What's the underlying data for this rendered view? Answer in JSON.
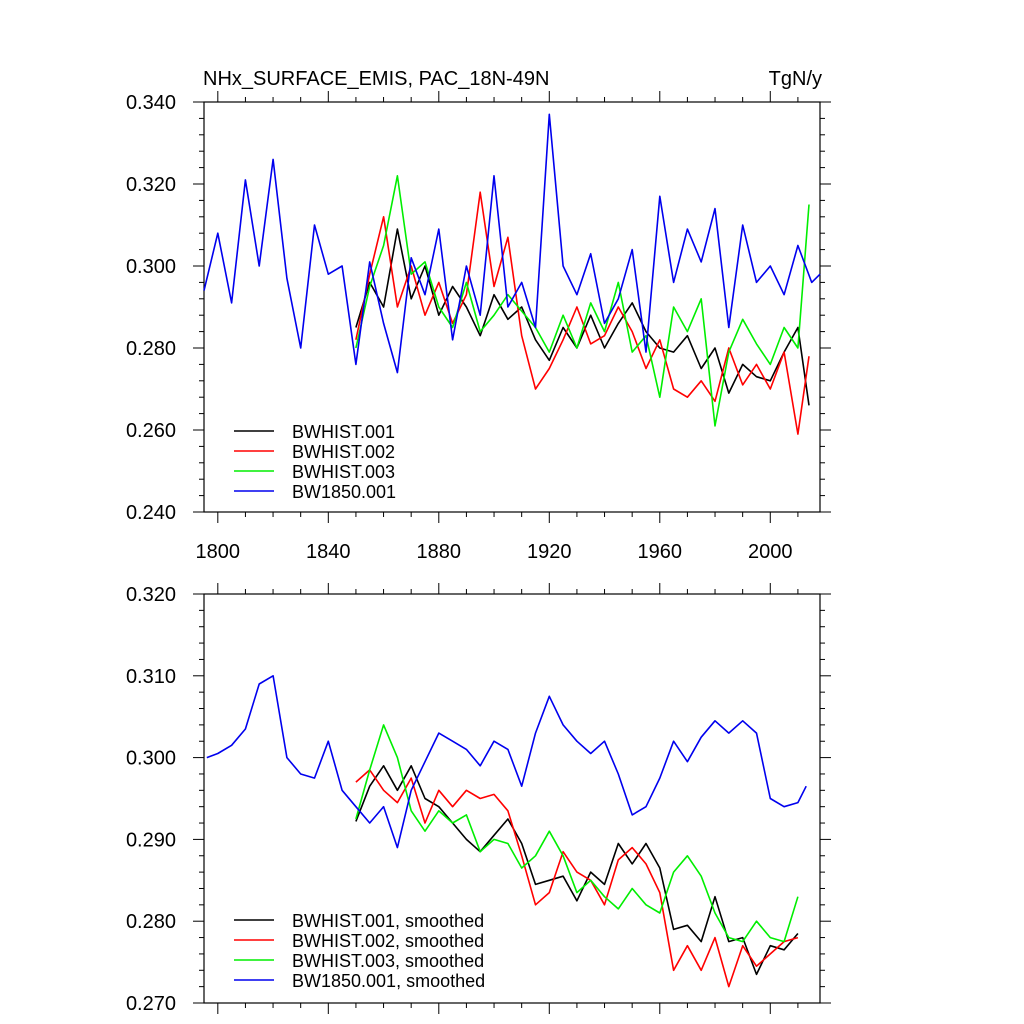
{
  "header": {
    "title": "NHx_SURFACE_EMIS, PAC_18N-49N",
    "units": "TgN/y"
  },
  "colors": {
    "s1": "#000000",
    "s2": "#ff0000",
    "s3": "#00ee00",
    "s4": "#0000ee"
  },
  "chart_data": [
    {
      "type": "line",
      "title": "NHx_SURFACE_EMIS, PAC_18N-49N",
      "units": "TgN/y",
      "xlim": [
        1795,
        2018
      ],
      "ylim": [
        0.24,
        0.34
      ],
      "xticks": [
        1800,
        1840,
        1880,
        1920,
        1960,
        2000
      ],
      "xtick_labels": [
        "1800",
        "1840",
        "1880",
        "1920",
        "1960",
        "2000"
      ],
      "yticks": [
        0.24,
        0.26,
        0.28,
        0.3,
        0.32,
        0.34
      ],
      "ytick_labels": [
        "0.240",
        "0.260",
        "0.280",
        "0.300",
        "0.320",
        "0.340"
      ],
      "legend": [
        "BWHIST.001",
        "BWHIST.002",
        "BWHIST.003",
        "BW1850.001"
      ],
      "legend_position": "bottom-left",
      "series": [
        {
          "name": "BWHIST.001",
          "color": "#000000",
          "x": [
            1850,
            1855,
            1860,
            1865,
            1870,
            1875,
            1880,
            1885,
            1890,
            1895,
            1900,
            1905,
            1910,
            1915,
            1920,
            1925,
            1930,
            1935,
            1940,
            1945,
            1950,
            1955,
            1960,
            1965,
            1970,
            1975,
            1980,
            1985,
            1990,
            1995,
            2000,
            2005,
            2010,
            2014
          ],
          "y": [
            0.285,
            0.296,
            0.29,
            0.309,
            0.292,
            0.3,
            0.288,
            0.295,
            0.29,
            0.283,
            0.293,
            0.287,
            0.29,
            0.282,
            0.277,
            0.285,
            0.28,
            0.288,
            0.28,
            0.286,
            0.291,
            0.284,
            0.28,
            0.279,
            0.283,
            0.275,
            0.28,
            0.269,
            0.276,
            0.273,
            0.272,
            0.279,
            0.285,
            0.266
          ]
        },
        {
          "name": "BWHIST.002",
          "color": "#ff0000",
          "x": [
            1850,
            1855,
            1860,
            1865,
            1870,
            1875,
            1880,
            1885,
            1890,
            1895,
            1900,
            1905,
            1910,
            1915,
            1920,
            1925,
            1930,
            1935,
            1940,
            1945,
            1950,
            1955,
            1960,
            1965,
            1970,
            1975,
            1980,
            1985,
            1990,
            1995,
            2000,
            2005,
            2010,
            2014
          ],
          "y": [
            0.282,
            0.298,
            0.312,
            0.29,
            0.3,
            0.288,
            0.296,
            0.286,
            0.293,
            0.318,
            0.295,
            0.307,
            0.283,
            0.27,
            0.275,
            0.282,
            0.29,
            0.281,
            0.283,
            0.29,
            0.284,
            0.275,
            0.282,
            0.27,
            0.268,
            0.272,
            0.267,
            0.28,
            0.271,
            0.276,
            0.27,
            0.279,
            0.259,
            0.278
          ]
        },
        {
          "name": "BWHIST.003",
          "color": "#00ee00",
          "x": [
            1850,
            1855,
            1860,
            1865,
            1870,
            1875,
            1880,
            1885,
            1890,
            1895,
            1900,
            1905,
            1910,
            1915,
            1920,
            1925,
            1930,
            1935,
            1940,
            1945,
            1950,
            1955,
            1960,
            1965,
            1970,
            1975,
            1980,
            1985,
            1990,
            1995,
            2000,
            2005,
            2010,
            2014
          ],
          "y": [
            0.28,
            0.295,
            0.305,
            0.322,
            0.298,
            0.301,
            0.29,
            0.285,
            0.296,
            0.284,
            0.288,
            0.293,
            0.289,
            0.285,
            0.279,
            0.288,
            0.28,
            0.291,
            0.284,
            0.296,
            0.279,
            0.283,
            0.268,
            0.29,
            0.284,
            0.292,
            0.261,
            0.279,
            0.287,
            0.281,
            0.276,
            0.285,
            0.28,
            0.315
          ]
        },
        {
          "name": "BW1850.001",
          "color": "#0000ee",
          "x": [
            1795,
            1800,
            1805,
            1810,
            1815,
            1820,
            1825,
            1830,
            1835,
            1840,
            1845,
            1850,
            1855,
            1860,
            1865,
            1870,
            1875,
            1880,
            1885,
            1890,
            1895,
            1900,
            1905,
            1910,
            1915,
            1920,
            1925,
            1930,
            1935,
            1940,
            1945,
            1950,
            1955,
            1960,
            1965,
            1970,
            1975,
            1980,
            1985,
            1990,
            1995,
            2000,
            2005,
            2010,
            2015,
            2018
          ],
          "y": [
            0.294,
            0.308,
            0.291,
            0.321,
            0.3,
            0.326,
            0.297,
            0.28,
            0.31,
            0.298,
            0.3,
            0.276,
            0.301,
            0.286,
            0.274,
            0.302,
            0.293,
            0.309,
            0.282,
            0.3,
            0.288,
            0.322,
            0.29,
            0.296,
            0.285,
            0.337,
            0.3,
            0.293,
            0.303,
            0.286,
            0.292,
            0.304,
            0.279,
            0.317,
            0.296,
            0.309,
            0.301,
            0.314,
            0.285,
            0.31,
            0.296,
            0.3,
            0.293,
            0.305,
            0.296,
            0.298
          ]
        }
      ]
    },
    {
      "type": "line",
      "xlim": [
        1795,
        2018
      ],
      "ylim": [
        0.27,
        0.32
      ],
      "xticks": [
        1800,
        1840,
        1880,
        1920,
        1960,
        2000
      ],
      "yticks": [
        0.27,
        0.28,
        0.29,
        0.3,
        0.31,
        0.32
      ],
      "ytick_labels": [
        "0.270",
        "0.280",
        "0.290",
        "0.300",
        "0.310",
        "0.320"
      ],
      "legend": [
        "BWHIST.001, smoothed",
        "BWHIST.002, smoothed",
        "BWHIST.003, smoothed",
        "BW1850.001, smoothed"
      ],
      "legend_position": "bottom-left",
      "series": [
        {
          "name": "BWHIST.001, smoothed",
          "color": "#000000",
          "x": [
            1850,
            1855,
            1860,
            1865,
            1870,
            1875,
            1880,
            1885,
            1890,
            1895,
            1900,
            1905,
            1910,
            1915,
            1920,
            1925,
            1930,
            1935,
            1940,
            1945,
            1950,
            1955,
            1960,
            1965,
            1970,
            1975,
            1980,
            1985,
            1990,
            1995,
            2000,
            2005,
            2010
          ],
          "y": [
            0.2922,
            0.2965,
            0.299,
            0.296,
            0.299,
            0.295,
            0.294,
            0.292,
            0.29,
            0.2885,
            0.2905,
            0.2925,
            0.2895,
            0.2845,
            0.285,
            0.2855,
            0.2825,
            0.286,
            0.2845,
            0.2895,
            0.287,
            0.2895,
            0.2865,
            0.279,
            0.2795,
            0.2775,
            0.283,
            0.2775,
            0.278,
            0.2735,
            0.277,
            0.2765,
            0.2785
          ]
        },
        {
          "name": "BWHIST.002, smoothed",
          "color": "#ff0000",
          "x": [
            1850,
            1855,
            1860,
            1865,
            1870,
            1875,
            1880,
            1885,
            1890,
            1895,
            1900,
            1905,
            1910,
            1915,
            1920,
            1925,
            1930,
            1935,
            1940,
            1945,
            1950,
            1955,
            1960,
            1965,
            1970,
            1975,
            1980,
            1985,
            1990,
            1995,
            2000,
            2005,
            2010
          ],
          "y": [
            0.297,
            0.2985,
            0.296,
            0.2945,
            0.2975,
            0.292,
            0.296,
            0.294,
            0.296,
            0.295,
            0.2955,
            0.2935,
            0.288,
            0.282,
            0.2835,
            0.2885,
            0.286,
            0.285,
            0.282,
            0.2875,
            0.289,
            0.287,
            0.2835,
            0.274,
            0.277,
            0.274,
            0.278,
            0.272,
            0.277,
            0.2745,
            0.276,
            0.2775,
            0.278
          ]
        },
        {
          "name": "BWHIST.003, smoothed",
          "color": "#00ee00",
          "x": [
            1850,
            1855,
            1860,
            1865,
            1870,
            1875,
            1880,
            1885,
            1890,
            1895,
            1900,
            1905,
            1910,
            1915,
            1920,
            1925,
            1930,
            1935,
            1940,
            1945,
            1950,
            1955,
            1960,
            1965,
            1970,
            1975,
            1980,
            1985,
            1990,
            1995,
            2000,
            2005,
            2010
          ],
          "y": [
            0.2925,
            0.2985,
            0.304,
            0.3,
            0.2935,
            0.291,
            0.2935,
            0.292,
            0.293,
            0.2885,
            0.29,
            0.2895,
            0.2865,
            0.288,
            0.291,
            0.288,
            0.2835,
            0.285,
            0.283,
            0.2815,
            0.284,
            0.282,
            0.281,
            0.286,
            0.288,
            0.2855,
            0.281,
            0.278,
            0.2775,
            0.28,
            0.278,
            0.2775,
            0.283
          ]
        },
        {
          "name": "BW1850.001, smoothed",
          "color": "#0000ee",
          "x": [
            1796,
            1800,
            1805,
            1810,
            1815,
            1820,
            1825,
            1830,
            1835,
            1840,
            1845,
            1850,
            1855,
            1860,
            1865,
            1870,
            1875,
            1880,
            1885,
            1890,
            1895,
            1900,
            1905,
            1910,
            1915,
            1920,
            1925,
            1930,
            1935,
            1940,
            1945,
            1950,
            1955,
            1960,
            1965,
            1970,
            1975,
            1980,
            1985,
            1990,
            1995,
            2000,
            2005,
            2010,
            2013
          ],
          "y": [
            0.3,
            0.3005,
            0.3015,
            0.3035,
            0.309,
            0.31,
            0.3,
            0.298,
            0.2975,
            0.302,
            0.296,
            0.294,
            0.292,
            0.294,
            0.289,
            0.296,
            0.2995,
            0.303,
            0.302,
            0.301,
            0.299,
            0.302,
            0.301,
            0.2965,
            0.303,
            0.3075,
            0.304,
            0.302,
            0.3005,
            0.302,
            0.298,
            0.293,
            0.294,
            0.2975,
            0.302,
            0.2995,
            0.3025,
            0.3045,
            0.303,
            0.3045,
            0.303,
            0.295,
            0.294,
            0.2945,
            0.2965
          ]
        }
      ]
    }
  ]
}
